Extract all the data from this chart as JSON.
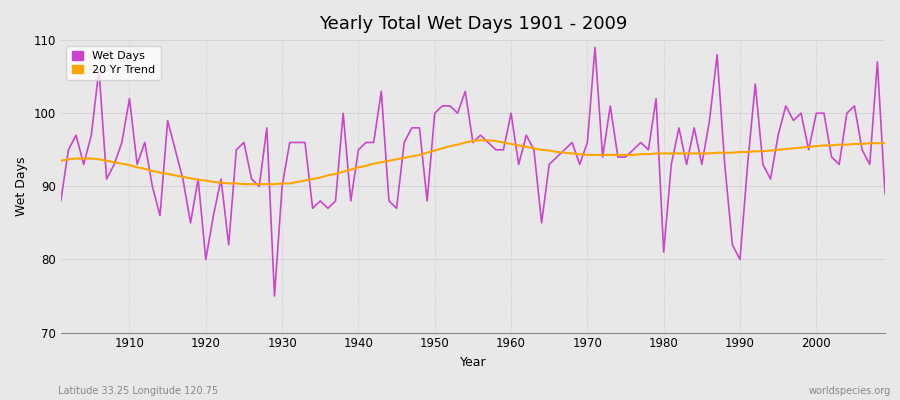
{
  "title": "Yearly Total Wet Days 1901 - 2009",
  "xlabel": "Year",
  "ylabel": "Wet Days",
  "footnote_left": "Latitude 33.25 Longitude 120.75",
  "footnote_right": "worldspecies.org",
  "ylim": [
    70,
    110
  ],
  "xlim": [
    1901,
    2009
  ],
  "yticks": [
    70,
    80,
    90,
    100,
    110
  ],
  "xticks": [
    1910,
    1920,
    1930,
    1940,
    1950,
    1960,
    1970,
    1980,
    1990,
    2000
  ],
  "wet_days_color": "#CC44CC",
  "trend_color": "#FFA500",
  "bg_color": "#E8E8E8",
  "plot_bg_color": "#DCDCDC",
  "grid_color": "#FFFFFF",
  "legend_labels": [
    "Wet Days",
    "20 Yr Trend"
  ],
  "years": [
    1901,
    1902,
    1903,
    1904,
    1905,
    1906,
    1907,
    1908,
    1909,
    1910,
    1911,
    1912,
    1913,
    1914,
    1915,
    1916,
    1917,
    1918,
    1919,
    1920,
    1921,
    1922,
    1923,
    1924,
    1925,
    1926,
    1927,
    1928,
    1929,
    1930,
    1931,
    1932,
    1933,
    1934,
    1935,
    1936,
    1937,
    1938,
    1939,
    1940,
    1941,
    1942,
    1943,
    1944,
    1945,
    1946,
    1947,
    1948,
    1949,
    1950,
    1951,
    1952,
    1953,
    1954,
    1955,
    1956,
    1957,
    1958,
    1959,
    1960,
    1961,
    1962,
    1963,
    1964,
    1965,
    1966,
    1967,
    1968,
    1969,
    1970,
    1971,
    1972,
    1973,
    1974,
    1975,
    1976,
    1977,
    1978,
    1979,
    1980,
    1981,
    1982,
    1983,
    1984,
    1985,
    1986,
    1987,
    1988,
    1989,
    1990,
    1991,
    1992,
    1993,
    1994,
    1995,
    1996,
    1997,
    1998,
    1999,
    2000,
    2001,
    2002,
    2003,
    2004,
    2005,
    2006,
    2007,
    2008,
    2009
  ],
  "wet_days": [
    88,
    95,
    97,
    93,
    97,
    106,
    91,
    93,
    96,
    102,
    93,
    96,
    90,
    86,
    99,
    95,
    91,
    85,
    91,
    80,
    86,
    91,
    82,
    95,
    96,
    91,
    90,
    98,
    75,
    90,
    96,
    96,
    96,
    87,
    88,
    87,
    88,
    100,
    88,
    95,
    96,
    96,
    103,
    88,
    87,
    96,
    98,
    98,
    88,
    100,
    101,
    101,
    100,
    103,
    96,
    97,
    96,
    95,
    95,
    100,
    93,
    97,
    95,
    85,
    93,
    94,
    95,
    96,
    93,
    96,
    109,
    94,
    101,
    94,
    94,
    95,
    96,
    95,
    102,
    81,
    93,
    98,
    93,
    98,
    93,
    99,
    108,
    93,
    82,
    80,
    93,
    104,
    93,
    91,
    97,
    101,
    99,
    100,
    95,
    100,
    100,
    94,
    93,
    100,
    101,
    95,
    93,
    107,
    89
  ],
  "trend": [
    93.5,
    93.7,
    93.8,
    93.8,
    93.8,
    93.7,
    93.5,
    93.3,
    93.1,
    92.9,
    92.6,
    92.4,
    92.1,
    91.9,
    91.7,
    91.5,
    91.3,
    91.1,
    90.9,
    90.8,
    90.6,
    90.5,
    90.4,
    90.4,
    90.3,
    90.3,
    90.3,
    90.3,
    90.3,
    90.4,
    90.4,
    90.6,
    90.8,
    91.0,
    91.2,
    91.5,
    91.7,
    92.0,
    92.3,
    92.6,
    92.8,
    93.1,
    93.3,
    93.5,
    93.7,
    93.9,
    94.1,
    94.3,
    94.6,
    94.9,
    95.2,
    95.5,
    95.7,
    96.0,
    96.2,
    96.3,
    96.3,
    96.2,
    96.0,
    95.8,
    95.6,
    95.4,
    95.2,
    95.0,
    94.9,
    94.7,
    94.6,
    94.5,
    94.4,
    94.3,
    94.3,
    94.3,
    94.3,
    94.3,
    94.3,
    94.3,
    94.4,
    94.4,
    94.5,
    94.5,
    94.5,
    94.5,
    94.5,
    94.5,
    94.5,
    94.5,
    94.6,
    94.6,
    94.6,
    94.7,
    94.7,
    94.8,
    94.8,
    94.9,
    95.0,
    95.1,
    95.2,
    95.3,
    95.4,
    95.5,
    95.6,
    95.6,
    95.7,
    95.7,
    95.8,
    95.8,
    95.9,
    95.9,
    95.9
  ]
}
